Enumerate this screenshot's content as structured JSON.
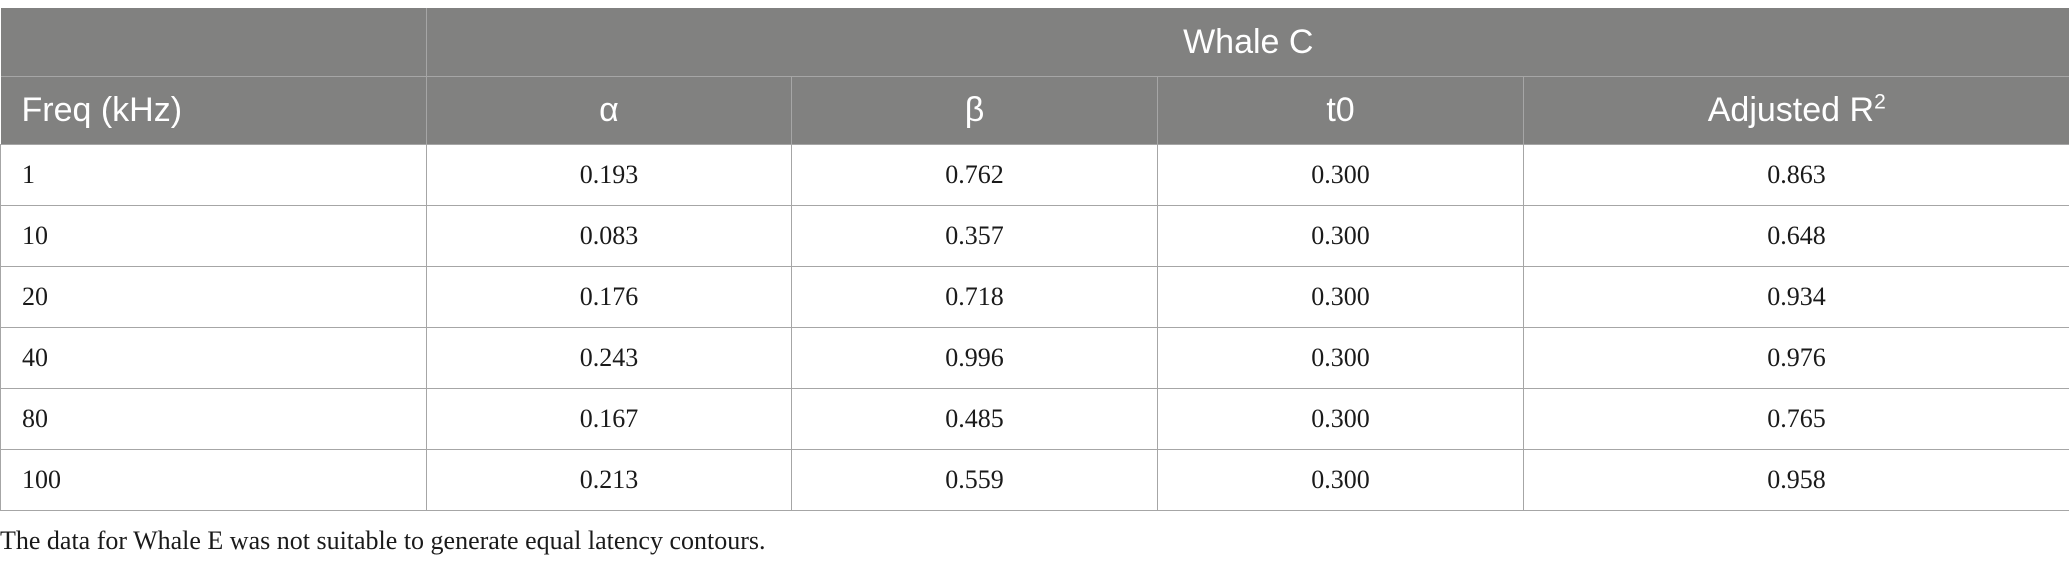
{
  "table": {
    "group_header": "Whale C",
    "columns": [
      {
        "label": "Freq (kHz)",
        "sup": ""
      },
      {
        "label": "α",
        "sup": ""
      },
      {
        "label": "β",
        "sup": ""
      },
      {
        "label": "t0",
        "sup": ""
      },
      {
        "label": "Adjusted R",
        "sup": "2"
      }
    ],
    "rows": [
      [
        "1",
        "0.193",
        "0.762",
        "0.300",
        "0.863"
      ],
      [
        "10",
        "0.083",
        "0.357",
        "0.300",
        "0.648"
      ],
      [
        "20",
        "0.176",
        "0.718",
        "0.300",
        "0.934"
      ],
      [
        "40",
        "0.243",
        "0.996",
        "0.300",
        "0.976"
      ],
      [
        "80",
        "0.167",
        "0.485",
        "0.300",
        "0.765"
      ],
      [
        "100",
        "0.213",
        "0.559",
        "0.300",
        "0.958"
      ]
    ]
  },
  "footnote": "The data for Whale E was not suitable to generate equal latency contours."
}
